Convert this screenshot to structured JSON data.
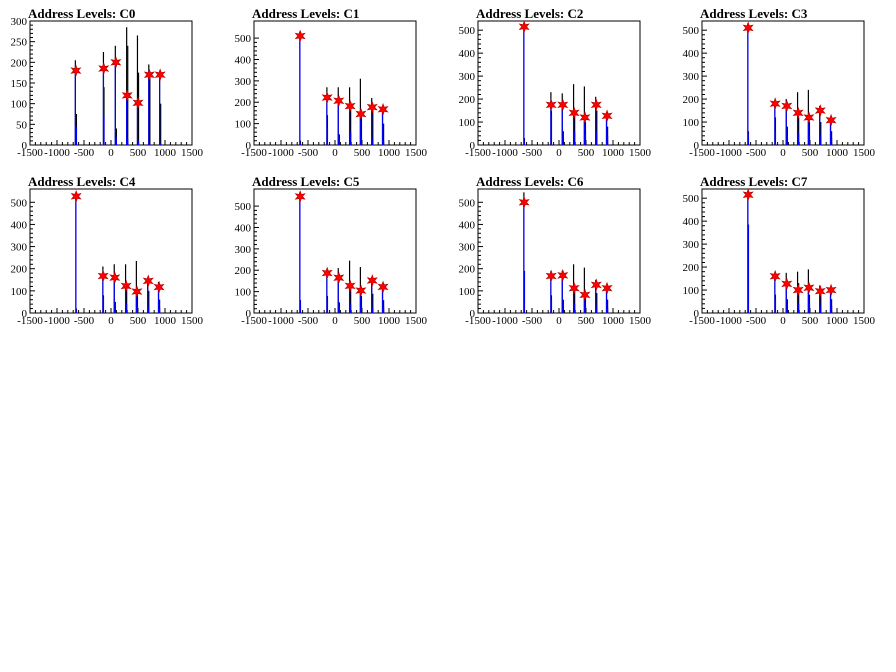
{
  "colors": {
    "total": "#000000",
    "selected": "#0000ff",
    "marker": "#ff0000",
    "markerEdge": "#b30000"
  },
  "chart_data": [
    {
      "type": "histogram",
      "title": "Address Levels: C0",
      "xlim": [
        -1500,
        1500
      ],
      "ylim": [
        0,
        300
      ],
      "xticks": [
        -1500,
        -1000,
        -500,
        0,
        500,
        1000,
        1500
      ],
      "yticks": [
        0,
        50,
        100,
        150,
        200,
        250,
        300
      ],
      "series": [
        {
          "x": [
            -660,
            -640,
            -140,
            -130,
            80,
            100,
            290,
            310,
            490,
            510,
            700,
            720,
            900,
            920
          ],
          "total": [
            205,
            75,
            225,
            140,
            240,
            40,
            285,
            240,
            265,
            175,
            195,
            165,
            175,
            100
          ],
          "selected": [
            180,
            45,
            185,
            70,
            200,
            20,
            120,
            15,
            100,
            10,
            170,
            5,
            170,
            5
          ]
        }
      ],
      "markers": [
        [
          -650,
          180
        ],
        [
          -135,
          185
        ],
        [
          90,
          200
        ],
        [
          300,
          120
        ],
        [
          500,
          102
        ],
        [
          710,
          170
        ],
        [
          910,
          170
        ]
      ]
    },
    {
      "type": "histogram",
      "title": "Address Levels: C1",
      "xlim": [
        -1500,
        1500
      ],
      "ylim": [
        0,
        580
      ],
      "xticks": [
        -1500,
        -1000,
        -500,
        0,
        500,
        1000,
        1500
      ],
      "yticks": [
        0,
        100,
        200,
        300,
        400,
        500
      ],
      "series": [
        {
          "x": [
            -650,
            -640,
            -150,
            -140,
            60,
            80,
            270,
            290,
            470,
            490,
            680,
            700,
            880,
            900
          ],
          "total": [
            530,
            20,
            270,
            140,
            270,
            50,
            270,
            200,
            310,
            150,
            220,
            180,
            180,
            100
          ],
          "selected": [
            510,
            10,
            220,
            80,
            205,
            30,
            180,
            60,
            145,
            40,
            175,
            30,
            165,
            20
          ]
        }
      ],
      "markers": [
        [
          -645,
          510
        ],
        [
          -145,
          222
        ],
        [
          70,
          207
        ],
        [
          280,
          182
        ],
        [
          480,
          145
        ],
        [
          690,
          177
        ],
        [
          890,
          167
        ]
      ]
    },
    {
      "type": "histogram",
      "title": "Address Levels: C2",
      "xlim": [
        -1500,
        1500
      ],
      "ylim": [
        0,
        540
      ],
      "xticks": [
        -1500,
        -1000,
        -500,
        0,
        500,
        1000,
        1500
      ],
      "yticks": [
        0,
        100,
        200,
        300,
        400,
        500
      ],
      "series": [
        {
          "x": [
            -650,
            -640,
            -150,
            -140,
            60,
            80,
            270,
            290,
            470,
            490,
            680,
            700,
            880,
            900
          ],
          "total": [
            530,
            30,
            230,
            150,
            225,
            60,
            265,
            150,
            255,
            100,
            210,
            150,
            140,
            80
          ],
          "selected": [
            515,
            20,
            175,
            130,
            175,
            50,
            140,
            60,
            120,
            50,
            175,
            60,
            125,
            40
          ]
        }
      ],
      "markers": [
        [
          -645,
          515
        ],
        [
          -145,
          175
        ],
        [
          70,
          175
        ],
        [
          280,
          140
        ],
        [
          480,
          120
        ],
        [
          690,
          175
        ],
        [
          890,
          127
        ]
      ]
    },
    {
      "type": "histogram",
      "title": "Address Levels: C3",
      "xlim": [
        -1500,
        1500
      ],
      "ylim": [
        0,
        540
      ],
      "xticks": [
        -1500,
        -1000,
        -500,
        0,
        500,
        1000,
        1500
      ],
      "yticks": [
        0,
        100,
        200,
        300,
        400,
        500
      ],
      "series": [
        {
          "x": [
            -650,
            -640,
            -150,
            -140,
            60,
            80,
            270,
            290,
            470,
            490,
            680,
            700,
            880,
            900
          ],
          "total": [
            530,
            60,
            190,
            120,
            200,
            80,
            230,
            120,
            240,
            100,
            170,
            100,
            120,
            60
          ],
          "selected": [
            510,
            50,
            180,
            60,
            170,
            40,
            140,
            50,
            120,
            40,
            150,
            40,
            110,
            30
          ]
        }
      ],
      "markers": [
        [
          -645,
          510
        ],
        [
          -145,
          180
        ],
        [
          70,
          170
        ],
        [
          280,
          140
        ],
        [
          480,
          120
        ],
        [
          690,
          150
        ],
        [
          890,
          108
        ]
      ]
    },
    {
      "type": "histogram",
      "title": "Address Levels: C4",
      "xlim": [
        -1500,
        1500
      ],
      "ylim": [
        0,
        560
      ],
      "xticks": [
        -1500,
        -1000,
        -500,
        0,
        500,
        1000,
        1500
      ],
      "yticks": [
        0,
        100,
        200,
        300,
        400,
        500
      ],
      "series": [
        {
          "x": [
            -650,
            -640,
            -150,
            -140,
            60,
            80,
            270,
            290,
            470,
            490,
            680,
            700,
            880,
            900
          ],
          "total": [
            535,
            20,
            210,
            80,
            220,
            50,
            220,
            130,
            235,
            80,
            160,
            100,
            140,
            60
          ],
          "selected": [
            525,
            10,
            165,
            70,
            160,
            40,
            120,
            40,
            95,
            30,
            145,
            30,
            115,
            25
          ]
        }
      ],
      "markers": [
        [
          -645,
          527
        ],
        [
          -145,
          167
        ],
        [
          70,
          160
        ],
        [
          280,
          122
        ],
        [
          480,
          97
        ],
        [
          690,
          145
        ],
        [
          890,
          117
        ]
      ]
    },
    {
      "type": "histogram",
      "title": "Address Levels: C5",
      "xlim": [
        -1500,
        1500
      ],
      "ylim": [
        0,
        580
      ],
      "xticks": [
        -1500,
        -1000,
        -500,
        0,
        500,
        1000,
        1500
      ],
      "yticks": [
        0,
        100,
        200,
        300,
        400,
        500
      ],
      "series": [
        {
          "x": [
            -650,
            -640,
            -150,
            -140,
            60,
            80,
            270,
            290,
            470,
            490,
            680,
            700,
            880,
            900
          ],
          "total": [
            555,
            60,
            200,
            80,
            210,
            50,
            245,
            140,
            215,
            80,
            160,
            90,
            140,
            60
          ],
          "selected": [
            545,
            60,
            185,
            60,
            165,
            30,
            125,
            40,
            105,
            30,
            150,
            30,
            120,
            30
          ]
        }
      ],
      "markers": [
        [
          -645,
          545
        ],
        [
          -145,
          187
        ],
        [
          70,
          165
        ],
        [
          280,
          127
        ],
        [
          480,
          105
        ],
        [
          690,
          152
        ],
        [
          890,
          122
        ]
      ]
    },
    {
      "type": "histogram",
      "title": "Address Levels: C6",
      "xlim": [
        -1500,
        1500
      ],
      "ylim": [
        0,
        560
      ],
      "xticks": [
        -1500,
        -1000,
        -500,
        0,
        500,
        1000,
        1500
      ],
      "yticks": [
        0,
        100,
        200,
        300,
        400,
        500
      ],
      "series": [
        {
          "x": [
            -650,
            -640,
            -150,
            -140,
            60,
            80,
            270,
            290,
            470,
            490,
            680,
            700,
            880,
            900
          ],
          "total": [
            545,
            190,
            190,
            80,
            190,
            60,
            220,
            130,
            205,
            70,
            150,
            90,
            130,
            60
          ],
          "selected": [
            500,
            190,
            165,
            60,
            170,
            40,
            110,
            40,
            80,
            30,
            125,
            30,
            110,
            25
          ]
        }
      ],
      "markers": [
        [
          -645,
          500
        ],
        [
          -145,
          167
        ],
        [
          70,
          170
        ],
        [
          280,
          112
        ],
        [
          480,
          82
        ],
        [
          690,
          127
        ],
        [
          890,
          112
        ]
      ]
    },
    {
      "type": "histogram",
      "title": "Address Levels: C7",
      "xlim": [
        -1500,
        1500
      ],
      "ylim": [
        0,
        540
      ],
      "xticks": [
        -1500,
        -1000,
        -500,
        0,
        500,
        1000,
        1500
      ],
      "yticks": [
        0,
        100,
        200,
        300,
        400,
        500
      ],
      "series": [
        {
          "x": [
            -650,
            -640,
            -150,
            -140,
            60,
            80,
            270,
            290,
            470,
            490,
            680,
            700,
            880,
            900
          ],
          "total": [
            530,
            385,
            175,
            80,
            175,
            60,
            180,
            130,
            190,
            80,
            120,
            80,
            110,
            60
          ],
          "selected": [
            515,
            385,
            160,
            60,
            130,
            40,
            100,
            40,
            110,
            40,
            95,
            30,
            100,
            30
          ]
        }
      ],
      "markers": [
        [
          -645,
          515
        ],
        [
          -145,
          160
        ],
        [
          70,
          127
        ],
        [
          280,
          100
        ],
        [
          480,
          110
        ],
        [
          690,
          95
        ],
        [
          890,
          100
        ]
      ]
    }
  ]
}
